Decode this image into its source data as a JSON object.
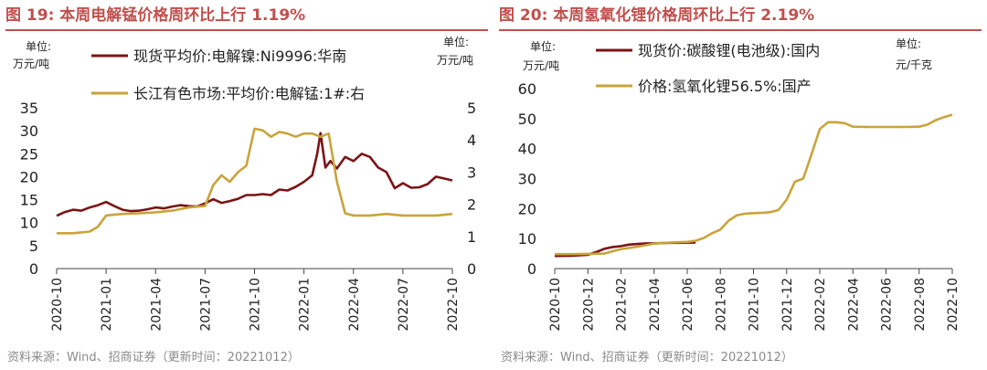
{
  "figures": [
    {
      "title": "图 19:  本周电解锰价格周环比上行 1.19%",
      "source": "资料来源：Wind、招商证券（更新时间：20221012）",
      "left_unit": [
        "单位:",
        "万元/吨"
      ],
      "right_unit": [
        "单位:",
        "万元/吨"
      ]
    },
    {
      "title": "图 20:  本周氢氧化锂价格周环比上行 2.19%",
      "source": "资料来源：Wind、招商证券（更新时间：20221012）",
      "left_unit": [
        "单位:",
        "万元/吨"
      ],
      "right_unit": [
        "单位:",
        "元/千克"
      ]
    }
  ],
  "colors": {
    "dark_red": "#7b1416",
    "gold": "#c9a43b",
    "title_red": "#c0504d"
  },
  "chart_data": [
    {
      "type": "line",
      "x_ticks": [
        "2020-10",
        "2021-01",
        "2021-04",
        "2021-07",
        "2021-10",
        "2022-01",
        "2022-04",
        "2022-07",
        "2022-10"
      ],
      "x_range": [
        0,
        24
      ],
      "ylim_left": [
        0,
        35
      ],
      "yticks_left": [
        0,
        5,
        10,
        15,
        20,
        25,
        30,
        35
      ],
      "ylim_right": [
        0,
        5
      ],
      "yticks_right": [
        0,
        1,
        2,
        3,
        4,
        5
      ],
      "legend_position": "top",
      "series": [
        {
          "name": "现货平均价:电解镍:Ni9996:华南",
          "axis": "left",
          "color": "#7b1416",
          "x": [
            0,
            0.5,
            1,
            1.5,
            2,
            2.5,
            3,
            3.5,
            4,
            4.5,
            5,
            5.5,
            6,
            6.5,
            7,
            7.5,
            8,
            8.5,
            9,
            9.5,
            10,
            10.5,
            11,
            11.5,
            12,
            12.5,
            13,
            13.5,
            14,
            14.5,
            15,
            15.5,
            15.8,
            16,
            16.3,
            16.6,
            17,
            17.5,
            18,
            18.5,
            19,
            19.5,
            20,
            20.5,
            21,
            21.5,
            22,
            22.5,
            23,
            23.5,
            24
          ],
          "y": [
            11.5,
            12.3,
            12.8,
            12.6,
            13.3,
            13.8,
            14.5,
            13.6,
            12.8,
            12.5,
            12.6,
            12.9,
            13.3,
            13.1,
            13.5,
            13.8,
            13.6,
            13.5,
            14.2,
            15.1,
            14.3,
            14.7,
            15.2,
            16.0,
            16.0,
            16.2,
            16.0,
            17.2,
            17.0,
            17.8,
            18.9,
            20.3,
            25.0,
            29.5,
            22.0,
            23.4,
            21.8,
            24.3,
            23.4,
            25.0,
            24.3,
            22.0,
            21.0,
            17.5,
            18.6,
            17.6,
            17.7,
            18.4,
            20.0,
            19.6,
            19.2
          ]
        },
        {
          "name": "长江有色市场:平均价:电解锰:1#:右",
          "axis": "right",
          "color": "#c9a43b",
          "x": [
            0,
            1,
            2,
            2.5,
            3,
            3.5,
            4,
            5,
            6,
            7,
            8,
            9,
            9.5,
            10,
            10.5,
            11,
            11.5,
            12,
            12.5,
            13,
            13.5,
            14,
            14.5,
            15,
            15.5,
            16,
            16.5,
            17,
            17.5,
            18,
            19,
            20,
            21,
            22,
            23,
            24
          ],
          "y": [
            1.1,
            1.1,
            1.15,
            1.3,
            1.65,
            1.68,
            1.7,
            1.72,
            1.75,
            1.8,
            1.9,
            1.95,
            2.6,
            2.9,
            2.7,
            3.0,
            3.2,
            4.35,
            4.3,
            4.1,
            4.25,
            4.2,
            4.1,
            4.2,
            4.2,
            4.1,
            4.2,
            2.7,
            1.72,
            1.65,
            1.65,
            1.7,
            1.65,
            1.65,
            1.65,
            1.7
          ]
        }
      ]
    },
    {
      "type": "line",
      "x_ticks": [
        "2020-10",
        "2020-12",
        "2021-02",
        "2021-04",
        "2021-06",
        "2021-08",
        "2021-10",
        "2021-12",
        "2022-02",
        "2022-04",
        "2022-06",
        "2022-08",
        "2022-10"
      ],
      "x_range": [
        0,
        24
      ],
      "ylim_left": [
        0,
        60
      ],
      "yticks_left": [
        0,
        10,
        20,
        30,
        40,
        50,
        60
      ],
      "legend_position": "top",
      "series": [
        {
          "name": "现货价:碳酸锂(电池级):国内",
          "axis": "left",
          "color": "#7b1416",
          "x": [
            0,
            1,
            2,
            2.5,
            3,
            3.5,
            4,
            4.5,
            5,
            5.5,
            6,
            6.5,
            7,
            7.5,
            8.5
          ],
          "y": [
            4.2,
            4.3,
            4.6,
            5.5,
            6.6,
            7.2,
            7.5,
            8.0,
            8.2,
            8.4,
            8.4,
            8.5,
            8.6,
            8.6,
            8.7
          ]
        },
        {
          "name": "价格:氢氧化锂56.5%:国产",
          "axis": "left",
          "color": "#c9a43b",
          "x": [
            0,
            1,
            2,
            3,
            3.5,
            4,
            5,
            6,
            7,
            8,
            8.5,
            9,
            9.5,
            10,
            10.5,
            11,
            11.5,
            12,
            12.5,
            13,
            13.5,
            14,
            14.5,
            15,
            15.5,
            16,
            16.5,
            17,
            17.5,
            18,
            19,
            20,
            21,
            22,
            22.5,
            23,
            23.5,
            24
          ],
          "y": [
            4.8,
            4.8,
            4.9,
            5.0,
            5.8,
            6.5,
            7.3,
            8.3,
            8.7,
            8.9,
            9.3,
            10.2,
            11.8,
            13.0,
            16.0,
            17.8,
            18.3,
            18.5,
            18.6,
            18.8,
            19.5,
            23.0,
            29.0,
            30.0,
            38.0,
            46.5,
            48.8,
            48.8,
            48.5,
            47.3,
            47.2,
            47.2,
            47.2,
            47.3,
            48.0,
            49.5,
            50.5,
            51.3
          ]
        }
      ]
    }
  ]
}
